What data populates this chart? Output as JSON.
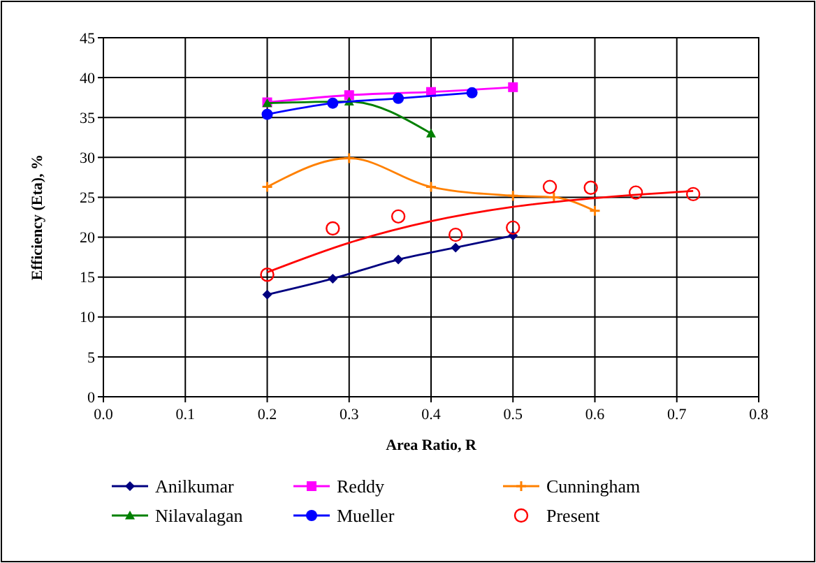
{
  "chart_data": {
    "type": "line",
    "xlabel": "Area Ratio, R",
    "ylabel": "Efficiency (Eta), %",
    "xlim": [
      0,
      0.8
    ],
    "xticks": [
      {
        "value": 0,
        "label": "0.0"
      },
      0.1,
      0.2,
      0.3,
      0.4,
      0.5,
      0.6,
      0.7,
      0.8
    ],
    "ylim": [
      0,
      45
    ],
    "yticks": [
      0,
      5,
      10,
      15,
      20,
      25,
      30,
      35,
      40,
      45
    ],
    "grid": true,
    "legend": "bottom",
    "series": [
      {
        "name": "Anilkumar",
        "color": "#000080",
        "marker": "diamond",
        "x": [
          0.2,
          0.28,
          0.36,
          0.43,
          0.5
        ],
        "values": [
          12.8,
          14.8,
          17.2,
          18.7,
          20.2
        ]
      },
      {
        "name": "Reddy",
        "color": "#ff00ff",
        "marker": "square",
        "x": [
          0.2,
          0.3,
          0.4,
          0.5
        ],
        "values": [
          36.9,
          37.8,
          38.2,
          38.8
        ]
      },
      {
        "name": "Cunningham",
        "color": "#ff8000",
        "marker": "cross",
        "x": [
          0.2,
          0.3,
          0.4,
          0.5,
          0.55,
          0.6
        ],
        "values": [
          26.3,
          29.9,
          26.3,
          25.2,
          25,
          23.3
        ]
      },
      {
        "name": "Nilavalagan",
        "color": "#008000",
        "marker": "triangle",
        "x": [
          0.2,
          0.3,
          0.4
        ],
        "values": [
          36.8,
          37,
          33
        ]
      },
      {
        "name": "Mueller",
        "color": "#0000ff",
        "marker": "circle",
        "x": [
          0.2,
          0.28,
          0.36,
          0.45
        ],
        "values": [
          35.4,
          36.8,
          37.4,
          38.1
        ]
      },
      {
        "name": "Present",
        "type": "scatter",
        "color": "#ff0000",
        "marker": "circle",
        "x": [
          0.2,
          0.28,
          0.36,
          0.43,
          0.5,
          0.545,
          0.595,
          0.65,
          0.72
        ],
        "values": [
          15.3,
          21.1,
          22.6,
          20.3,
          21.2,
          26.3,
          26.2,
          25.6,
          25.4
        ]
      },
      {
        "type": "line",
        "color": "#ff0000",
        "marker": "none",
        "x": [
          0.2,
          0.3,
          0.4,
          0.5,
          0.6,
          0.72
        ],
        "values": [
          15.6,
          19.3,
          22,
          23.8,
          24.9,
          25.8
        ]
      }
    ]
  }
}
